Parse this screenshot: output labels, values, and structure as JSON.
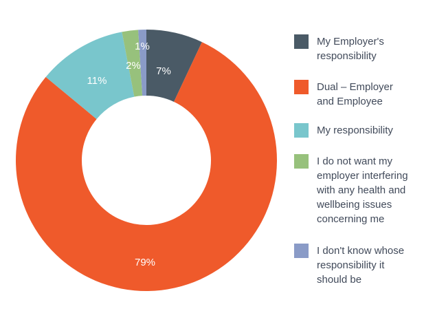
{
  "chart_data": {
    "type": "pie",
    "title": "",
    "slices": [
      {
        "label": "My Employer's\nresponsibility",
        "value": 7,
        "display": "7%",
        "color": "#4a5a66"
      },
      {
        "label": "Dual – Employer\nand Employee",
        "value": 79,
        "display": "79%",
        "color": "#ef5a2b"
      },
      {
        "label": "My responsibility",
        "value": 11,
        "display": "11%",
        "color": "#79c6cc"
      },
      {
        "label": "I do not want my\nemployer interfering\nwith any health and\nwellbeing issues\nconcerning me",
        "value": 2,
        "display": "2%",
        "color": "#97c17c"
      },
      {
        "label": "I don't know whose\nresponsibility it\nshould be",
        "value": 1,
        "display": "1%",
        "color": "#8a9bc7"
      }
    ],
    "legend_position": "right"
  }
}
